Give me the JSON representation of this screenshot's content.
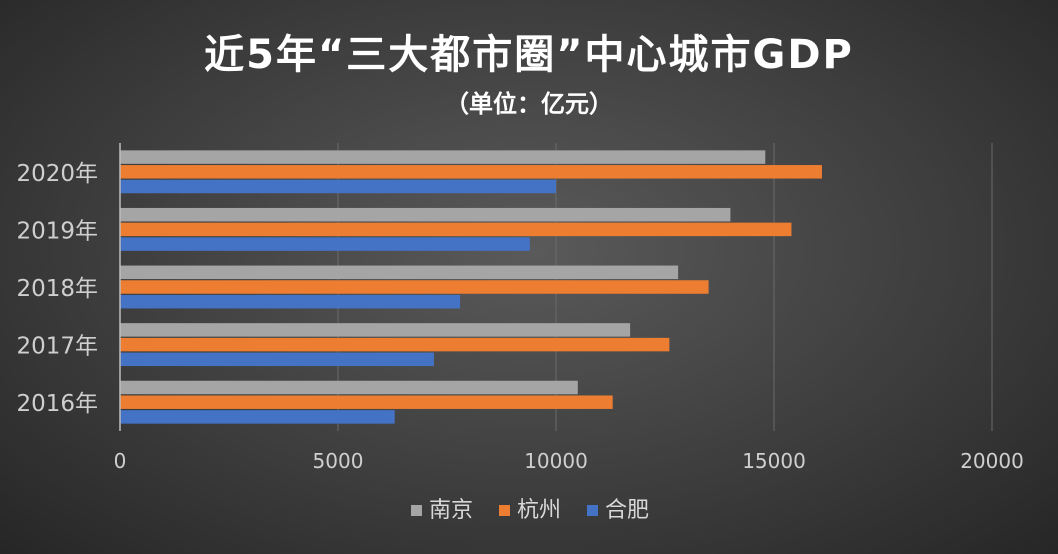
{
  "chart_data": {
    "type": "bar",
    "orientation": "horizontal",
    "title": "近5年“三大都市圈”中心城市GDP",
    "subtitle": "（单位：亿元）",
    "categories": [
      "2016年",
      "2017年",
      "2018年",
      "2019年",
      "2020年"
    ],
    "series": [
      {
        "name": "南京",
        "color": "#a5a5a5",
        "values": [
          10500,
          11700,
          12800,
          14000,
          14800
        ]
      },
      {
        "name": "杭州",
        "color": "#ed7d31",
        "values": [
          11300,
          12600,
          13500,
          15400,
          16100
        ]
      },
      {
        "name": "合肥",
        "color": "#4472c4",
        "values": [
          6300,
          7200,
          7800,
          9400,
          10000
        ]
      }
    ],
    "xlim": [
      0,
      20000
    ],
    "xticks": [
      "0",
      "5000",
      "10000",
      "15000",
      "20000"
    ],
    "grid": true,
    "legend": "bottom"
  }
}
